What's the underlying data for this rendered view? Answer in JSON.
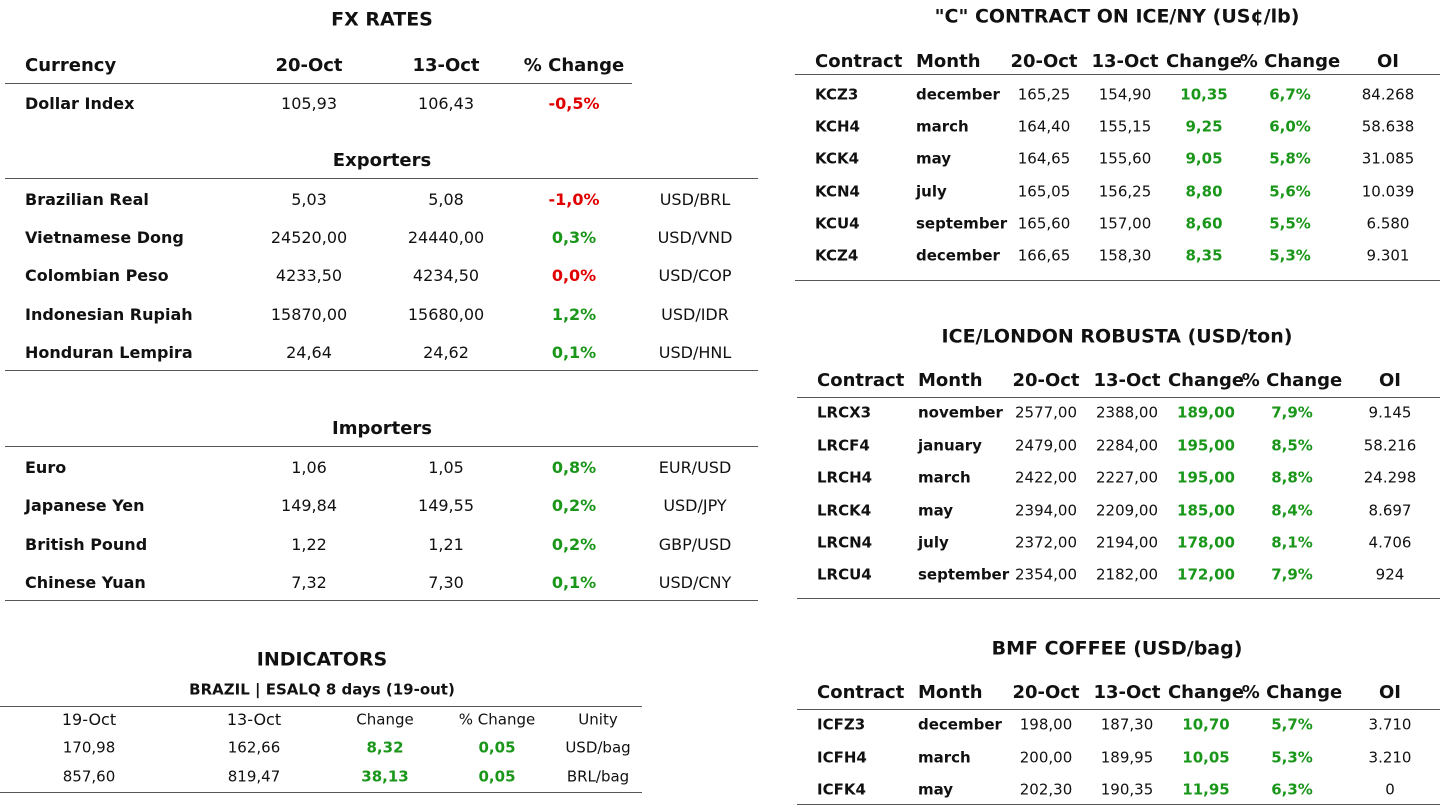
{
  "fx": {
    "title": "FX RATES",
    "headers": [
      "Currency",
      "20-Oct",
      "13-Oct",
      "% Change"
    ],
    "dollar": {
      "cells": [
        "Dollar Index",
        "105,93",
        "106,43",
        "-0,5%"
      ],
      "change_color": "#e00000"
    },
    "groups": [
      {
        "title": "Exporters",
        "rows": [
          {
            "cells": [
              "Brazilian Real",
              "5,03",
              "5,08",
              "-1,0%",
              "USD/BRL"
            ],
            "change_color": "#e00000"
          },
          {
            "cells": [
              "Vietnamese Dong",
              "24520,00",
              "24440,00",
              "0,3%",
              "USD/VND"
            ],
            "change_color": "#1a961a"
          },
          {
            "cells": [
              "Colombian Peso",
              "4233,50",
              "4234,50",
              "0,0%",
              "USD/COP"
            ],
            "change_color": "#e00000"
          },
          {
            "cells": [
              "Indonesian Rupiah",
              "15870,00",
              "15680,00",
              "1,2%",
              "USD/IDR"
            ],
            "change_color": "#1a961a"
          },
          {
            "cells": [
              "Honduran Lempira",
              "24,64",
              "24,62",
              "0,1%",
              "USD/HNL"
            ],
            "change_color": "#1a961a"
          }
        ]
      },
      {
        "title": "Importers",
        "rows": [
          {
            "cells": [
              "Euro",
              "1,06",
              "1,05",
              "0,8%",
              "EUR/USD"
            ],
            "change_color": "#1a961a"
          },
          {
            "cells": [
              "Japanese Yen",
              "149,84",
              "149,55",
              "0,2%",
              "USD/JPY"
            ],
            "change_color": "#1a961a"
          },
          {
            "cells": [
              "British Pound",
              "1,22",
              "1,21",
              "0,2%",
              "GBP/USD"
            ],
            "change_color": "#1a961a"
          },
          {
            "cells": [
              "Chinese Yuan",
              "7,32",
              "7,30",
              "0,1%",
              "USD/CNY"
            ],
            "change_color": "#1a961a"
          }
        ]
      }
    ]
  },
  "indicators": {
    "title": "INDICATORS",
    "subtitle": "BRAZIL | ESALQ 8 days (19-out)",
    "headers": [
      "19-Oct",
      "13-Oct",
      "Change",
      "% Change",
      "Unity"
    ],
    "rows": [
      [
        "170,98",
        "162,66",
        "8,32",
        "0,05",
        "USD/bag"
      ],
      [
        "857,60",
        "819,47",
        "38,13",
        "0,05",
        "BRL/bag"
      ]
    ],
    "highlight_color": "#1a961a"
  },
  "markets": [
    {
      "title": "\"C\" CONTRACT ON ICE/NY (US¢/lb)",
      "headers": [
        "Contract",
        "Month",
        "20-Oct",
        "13-Oct",
        "Change",
        "% Change",
        "OI"
      ],
      "rows": [
        [
          "KCZ3",
          "december",
          "165,25",
          "154,90",
          "10,35",
          "6,7%",
          "84.268"
        ],
        [
          "KCH4",
          "march",
          "164,40",
          "155,15",
          "9,25",
          "6,0%",
          "58.638"
        ],
        [
          "KCK4",
          "may",
          "164,65",
          "155,60",
          "9,05",
          "5,8%",
          "31.085"
        ],
        [
          "KCN4",
          "july",
          "165,05",
          "156,25",
          "8,80",
          "5,6%",
          "10.039"
        ],
        [
          "KCU4",
          "september",
          "165,60",
          "157,00",
          "8,60",
          "5,5%",
          "6.580"
        ],
        [
          "KCZ4",
          "december",
          "166,65",
          "158,30",
          "8,35",
          "5,3%",
          "9.301"
        ]
      ],
      "highlight_color": "#1a961a"
    },
    {
      "title": "ICE/LONDON ROBUSTA (USD/ton)",
      "headers": [
        "Contract",
        "Month",
        "20-Oct",
        "13-Oct",
        "Change",
        "% Change",
        "OI"
      ],
      "rows": [
        [
          "LRCX3",
          "november",
          "2577,00",
          "2388,00",
          "189,00",
          "7,9%",
          "9.145"
        ],
        [
          "LRCF4",
          "january",
          "2479,00",
          "2284,00",
          "195,00",
          "8,5%",
          "58.216"
        ],
        [
          "LRCH4",
          "march",
          "2422,00",
          "2227,00",
          "195,00",
          "8,8%",
          "24.298"
        ],
        [
          "LRCK4",
          "may",
          "2394,00",
          "2209,00",
          "185,00",
          "8,4%",
          "8.697"
        ],
        [
          "LRCN4",
          "july",
          "2372,00",
          "2194,00",
          "178,00",
          "8,1%",
          "4.706"
        ],
        [
          "LRCU4",
          "september",
          "2354,00",
          "2182,00",
          "172,00",
          "7,9%",
          "924"
        ]
      ],
      "highlight_color": "#1a961a"
    },
    {
      "title": "BMF COFFEE (USD/bag)",
      "headers": [
        "Contract",
        "Month",
        "20-Oct",
        "13-Oct",
        "Change",
        "% Change",
        "OI"
      ],
      "rows": [
        [
          "ICFZ3",
          "december",
          "198,00",
          "187,30",
          "10,70",
          "5,7%",
          "3.710"
        ],
        [
          "ICFH4",
          "march",
          "200,00",
          "189,95",
          "10,05",
          "5,3%",
          "3.210"
        ],
        [
          "ICFK4",
          "may",
          "202,30",
          "190,35",
          "11,95",
          "6,3%",
          "0"
        ]
      ],
      "highlight_color": "#1a961a"
    }
  ]
}
